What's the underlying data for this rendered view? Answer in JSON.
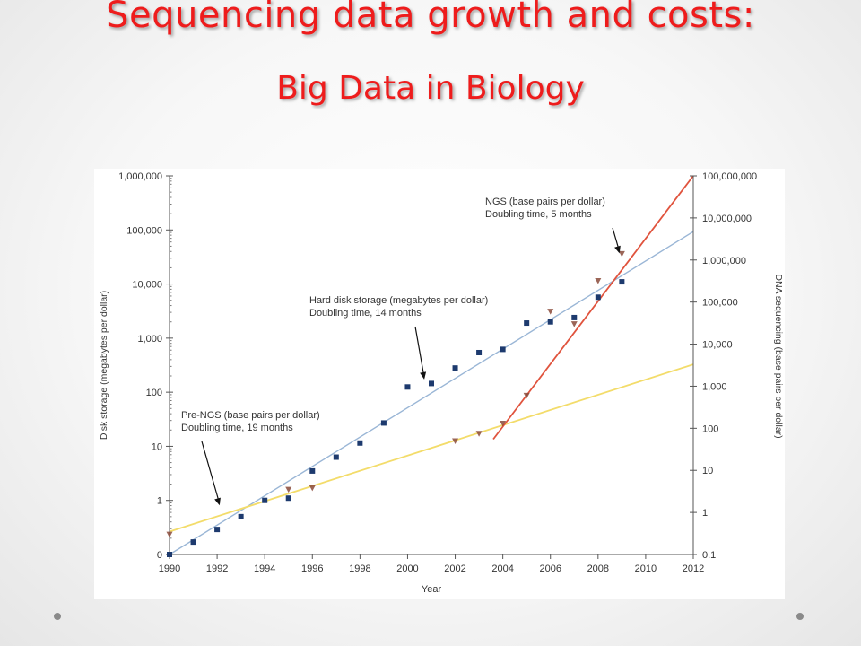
{
  "slide": {
    "title_line1": "Sequencing data growth and costs:",
    "title_line2": "Big Data in Biology"
  },
  "colors": {
    "title": "#ee1c1c",
    "disk_series": "#1d3a6e",
    "disk_trend": "#9ab6d6",
    "pre_ngs_trend": "#f3dc6a",
    "ngs_trend": "#e0533d",
    "seq_points": "#8a4a3a"
  },
  "chart_data": {
    "type": "scatter",
    "xlabel": "Year",
    "ylabel_left": "Disk storage (megabytes per dollar)",
    "ylabel_right": "DNA sequencing (base pairs per dollar)",
    "x_ticks": [
      1990,
      1992,
      1994,
      1996,
      1998,
      2000,
      2002,
      2004,
      2006,
      2008,
      2010,
      2012
    ],
    "xlim": [
      1990,
      2012
    ],
    "y_left_scale": "log",
    "y_left_ticks": [
      {
        "value": 0.1,
        "label": "0"
      },
      {
        "value": 1,
        "label": "1"
      },
      {
        "value": 10,
        "label": "10"
      },
      {
        "value": 100,
        "label": "100"
      },
      {
        "value": 1000,
        "label": "1,000"
      },
      {
        "value": 10000,
        "label": "10,000"
      },
      {
        "value": 100000,
        "label": "100,000"
      },
      {
        "value": 1000000,
        "label": "1,000,000"
      }
    ],
    "y_right_scale": "log",
    "y_right_ticks": [
      {
        "value": 0.1,
        "label": "0.1"
      },
      {
        "value": 1,
        "label": "1"
      },
      {
        "value": 10,
        "label": "10"
      },
      {
        "value": 100,
        "label": "100"
      },
      {
        "value": 1000,
        "label": "1,000"
      },
      {
        "value": 10000,
        "label": "10,000"
      },
      {
        "value": 100000,
        "label": "100,000"
      },
      {
        "value": 1000000,
        "label": "1,000,000"
      },
      {
        "value": 10000000,
        "label": "10,000,000"
      },
      {
        "value": 100000000,
        "label": "100,000,000"
      }
    ],
    "series": [
      {
        "kind": "disk_points",
        "axis": "left",
        "marker": "square",
        "x": [
          1990,
          1991,
          1992,
          1993,
          1994,
          1995,
          1996,
          1997,
          1998,
          1999,
          2000,
          2001,
          2002,
          2003,
          2004,
          2005,
          2006,
          2007,
          2008,
          2009
        ],
        "y": [
          0.1,
          0.17,
          0.29,
          0.5,
          1.0,
          1.1,
          3.5,
          6.3,
          11.5,
          27,
          125,
          145,
          280,
          540,
          620,
          1900,
          2000,
          2400,
          5700,
          11000
        ]
      },
      {
        "kind": "sequencing_points",
        "axis": "right",
        "marker": "triangle-down",
        "x": [
          1990,
          1995,
          1996,
          2002,
          2003,
          2004,
          2005,
          2006,
          2007,
          2008,
          2009
        ],
        "y": [
          0.3,
          3.5,
          3.8,
          50,
          75,
          130,
          600,
          60000,
          30000,
          320000,
          1400000
        ]
      },
      {
        "kind": "disk_trend",
        "axis": "left",
        "x": [
          1990,
          2012
        ],
        "y": [
          0.1,
          93000
        ]
      },
      {
        "kind": "pre_ngs_trend",
        "axis": "right",
        "x": [
          1990,
          2012
        ],
        "y": [
          0.35,
          3300
        ]
      },
      {
        "kind": "ngs_trend",
        "axis": "right",
        "x": [
          2003.6,
          2012
        ],
        "y": [
          55,
          100000000
        ]
      }
    ],
    "annotations": [
      {
        "id": "ngs",
        "line1": "NGS (base pairs per dollar)",
        "line2": "Doubling time, 5 months",
        "arrow_to_x": 2008.9,
        "arrow_to_y_right": 1300000,
        "axis": "right"
      },
      {
        "id": "disk",
        "line1": "Hard disk storage (megabytes per dollar)",
        "line2": "Doubling time, 14 months",
        "arrow_to_x": 2000.7,
        "arrow_to_y_left": 160,
        "axis": "left"
      },
      {
        "id": "pre",
        "line1": "Pre-NGS (base pairs per dollar)",
        "line2": "Doubling time, 19 months",
        "arrow_to_x": 1992.1,
        "arrow_to_y_left": 0.75,
        "axis": "left"
      }
    ]
  }
}
